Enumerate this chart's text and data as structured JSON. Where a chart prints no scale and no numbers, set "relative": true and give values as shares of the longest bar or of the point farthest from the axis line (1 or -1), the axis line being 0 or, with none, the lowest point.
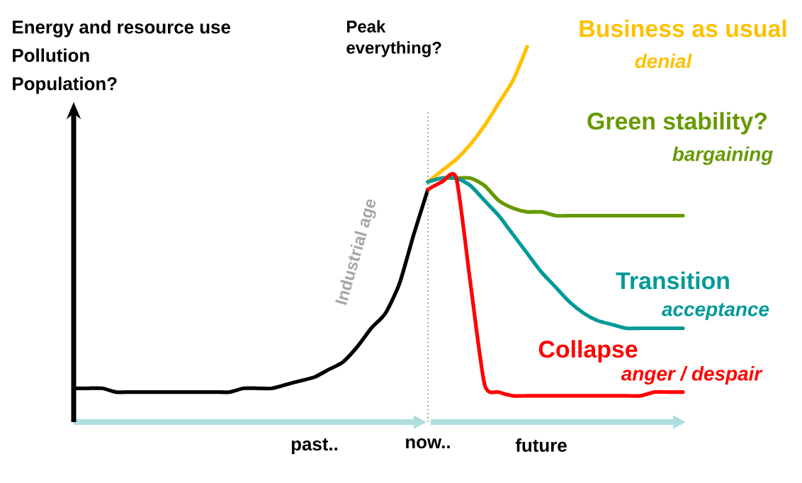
{
  "chart_data": {
    "type": "line",
    "relative": true,
    "categories": [
      null,
      null,
      null,
      null,
      null,
      null,
      null,
      null,
      null,
      null,
      null,
      null,
      null,
      null,
      null,
      null,
      null,
      "past..",
      null,
      null,
      null,
      null,
      null,
      null,
      null,
      "now..",
      null,
      null,
      null,
      null,
      null,
      null,
      null,
      "future",
      null,
      null,
      null,
      null,
      null,
      null,
      null,
      null,
      null,
      null,
      null
    ],
    "series": [
      {
        "color": "#000000",
        "values": [
          0.09,
          0.09,
          0.09,
          0.08,
          0.08,
          0.08,
          0.08,
          0.08,
          0.08,
          0.08,
          0.08,
          0.08,
          0.09,
          0.09,
          0.09,
          0.1,
          0.11,
          0.12,
          0.14,
          0.16,
          0.2,
          0.25,
          0.29,
          0.37,
          0.5,
          0.62,
          null,
          null,
          null,
          null,
          null,
          null,
          null,
          null,
          null,
          null,
          null,
          null,
          null,
          null,
          null,
          null,
          null,
          null,
          null
        ]
      },
      {
        "name": "Business as usual",
        "color": "#ffc000",
        "values": [
          null,
          null,
          null,
          null,
          null,
          null,
          null,
          null,
          null,
          null,
          null,
          null,
          null,
          null,
          null,
          null,
          null,
          null,
          null,
          null,
          null,
          null,
          null,
          null,
          null,
          0.64,
          0.67,
          0.7,
          0.74,
          0.79,
          0.85,
          0.91,
          1.0,
          null,
          null,
          null,
          null,
          null,
          null,
          null,
          null,
          null,
          null,
          null,
          null
        ]
      },
      {
        "name": "Green stability?",
        "color": "#669900",
        "values": [
          null,
          null,
          null,
          null,
          null,
          null,
          null,
          null,
          null,
          null,
          null,
          null,
          null,
          null,
          null,
          null,
          null,
          null,
          null,
          null,
          null,
          null,
          null,
          null,
          null,
          0.64,
          0.65,
          0.65,
          0.65,
          0.63,
          0.59,
          0.57,
          0.56,
          0.56,
          0.55,
          0.55,
          0.55,
          0.55,
          0.55,
          0.55,
          0.55,
          0.55,
          0.55,
          0.55,
          null
        ]
      },
      {
        "name": "Transition",
        "color": "#009999",
        "values": [
          null,
          null,
          null,
          null,
          null,
          null,
          null,
          null,
          null,
          null,
          null,
          null,
          null,
          null,
          null,
          null,
          null,
          null,
          null,
          null,
          null,
          null,
          null,
          null,
          null,
          0.64,
          0.65,
          0.65,
          0.63,
          0.59,
          0.55,
          0.5,
          0.45,
          0.4,
          0.36,
          0.32,
          0.29,
          0.27,
          0.26,
          0.25,
          0.25,
          0.25,
          0.25,
          0.25,
          null
        ]
      },
      {
        "name": "Collapse",
        "color": "#ff0000",
        "values": [
          null,
          null,
          null,
          null,
          null,
          null,
          null,
          null,
          null,
          null,
          null,
          null,
          null,
          null,
          null,
          null,
          null,
          null,
          null,
          null,
          null,
          null,
          null,
          null,
          null,
          0.62,
          0.64,
          0.65,
          0.37,
          0.1,
          0.08,
          0.07,
          0.07,
          0.07,
          0.07,
          0.07,
          0.07,
          0.07,
          0.07,
          0.07,
          0.07,
          0.08,
          0.08,
          0.08,
          null
        ]
      }
    ],
    "ref_lines": [
      {
        "axis": "x",
        "value": "now..",
        "color": "#808080",
        "line_style": "dotted"
      }
    ],
    "annotations": [
      "Energy and resource use",
      "Pollution",
      "Population?",
      "Peak everything?",
      "Industrial age",
      "denial",
      "bargaining",
      "acceptance",
      "anger / despair"
    ]
  }
}
